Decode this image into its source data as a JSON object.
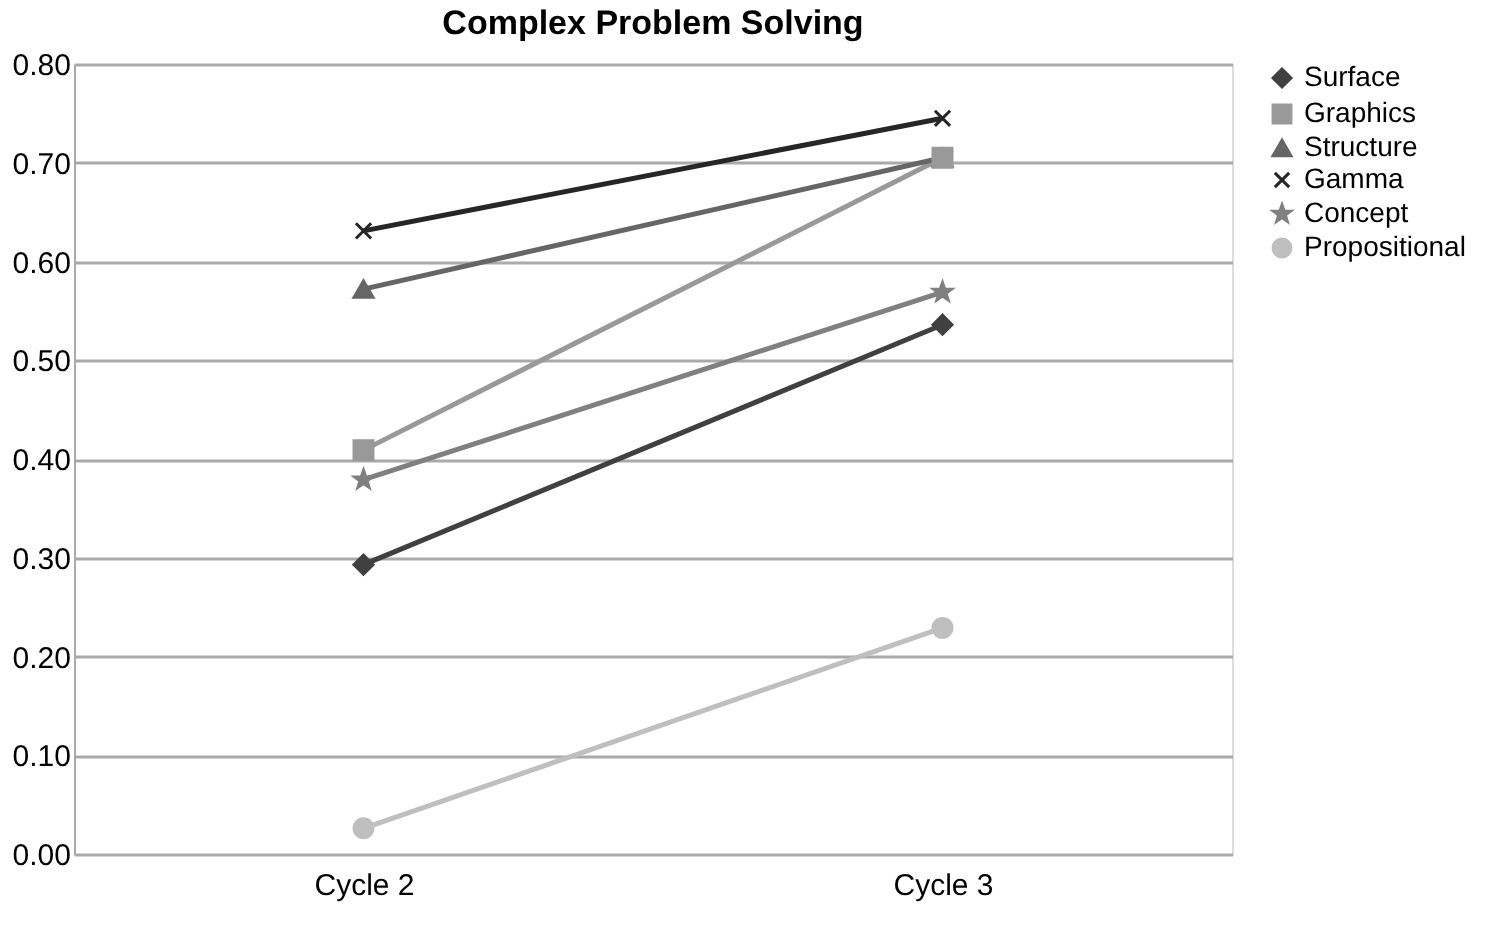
{
  "chart_data": {
    "type": "line",
    "title": "Complex Problem Solving",
    "categories": [
      "Cycle 2",
      "Cycle 3"
    ],
    "series": [
      {
        "name": "Surface",
        "color": "#404040",
        "marker": "diamond",
        "values": [
          0.293,
          0.536
        ]
      },
      {
        "name": "Graphics",
        "color": "#999999",
        "marker": "square",
        "values": [
          0.409,
          0.705
        ]
      },
      {
        "name": "Structure",
        "color": "#666666",
        "marker": "triangle",
        "values": [
          0.572,
          0.705
        ]
      },
      {
        "name": "Gamma",
        "color": "#262626",
        "marker": "cross",
        "values": [
          0.631,
          0.745
        ]
      },
      {
        "name": "Concept",
        "color": "#808080",
        "marker": "star",
        "values": [
          0.379,
          0.569
        ]
      },
      {
        "name": "Propositional",
        "color": "#bfbfbf",
        "marker": "circle",
        "values": [
          0.026,
          0.229
        ]
      }
    ],
    "ylim": [
      0,
      0.8
    ],
    "yticks": [
      {
        "value": 0,
        "label": "0.00"
      },
      {
        "value": 0.1,
        "label": "0.10"
      },
      {
        "value": 0.2,
        "label": "0.20"
      },
      {
        "value": 0.3,
        "label": "0.30"
      },
      {
        "value": 0.4,
        "label": "0.40"
      },
      {
        "value": 0.5,
        "label": "0.50"
      },
      {
        "value": 0.6,
        "label": "0.60"
      },
      {
        "value": 0.7,
        "label": "0.70"
      },
      {
        "value": 0.8,
        "label": "0.80"
      }
    ],
    "grid": "y",
    "legend": "right",
    "line_style": "solid"
  }
}
